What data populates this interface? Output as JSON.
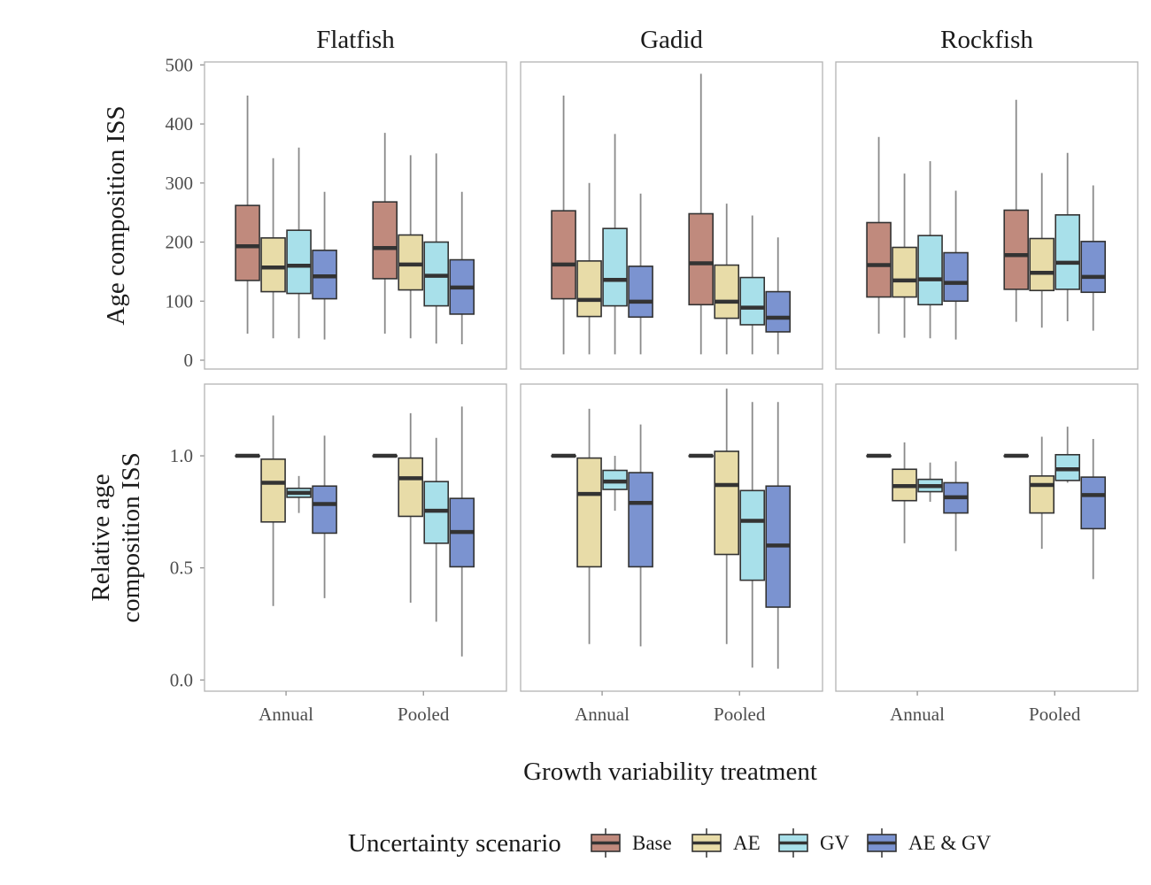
{
  "chart_data": {
    "type": "boxplot",
    "facets": [
      "Flatfish",
      "Gadid",
      "Rockfish"
    ],
    "categories": [
      "Annual",
      "Pooled"
    ],
    "xlabel": "Growth variability treatment",
    "legend": {
      "title": "Uncertainty scenario",
      "placement": "bottom",
      "series": [
        {
          "name": "Base",
          "color": "#c08a7d"
        },
        {
          "name": "AE",
          "color": "#e8dca8"
        },
        {
          "name": "GV",
          "color": "#a8e0ea"
        },
        {
          "name": "AE & GV",
          "color": "#7b93d0"
        }
      ]
    },
    "rows": [
      {
        "ylabel": [
          "Age composition ISS"
        ],
        "ylim": [
          -15,
          505
        ],
        "yticks": [
          0,
          100,
          200,
          300,
          400,
          500
        ],
        "ytick_labels": [
          "0",
          "100",
          "200",
          "300",
          "400",
          "500"
        ],
        "panels": {
          "Flatfish": {
            "Annual": [
              {
                "min": 45,
                "q1": 135,
                "median": 193,
                "q3": 262,
                "max": 448
              },
              {
                "min": 37,
                "q1": 116,
                "median": 157,
                "q3": 207,
                "max": 342
              },
              {
                "min": 37,
                "q1": 113,
                "median": 160,
                "q3": 220,
                "max": 360
              },
              {
                "min": 35,
                "q1": 104,
                "median": 142,
                "q3": 186,
                "max": 285
              }
            ],
            "Pooled": [
              {
                "min": 45,
                "q1": 138,
                "median": 190,
                "q3": 268,
                "max": 385
              },
              {
                "min": 37,
                "q1": 119,
                "median": 162,
                "q3": 212,
                "max": 347
              },
              {
                "min": 28,
                "q1": 92,
                "median": 143,
                "q3": 200,
                "max": 350
              },
              {
                "min": 27,
                "q1": 78,
                "median": 123,
                "q3": 170,
                "max": 285
              }
            ]
          },
          "Gadid": {
            "Annual": [
              {
                "min": 10,
                "q1": 104,
                "median": 162,
                "q3": 253,
                "max": 448
              },
              {
                "min": 10,
                "q1": 74,
                "median": 102,
                "q3": 168,
                "max": 300
              },
              {
                "min": 10,
                "q1": 92,
                "median": 136,
                "q3": 223,
                "max": 383
              },
              {
                "min": 10,
                "q1": 73,
                "median": 99,
                "q3": 159,
                "max": 282
              }
            ],
            "Pooled": [
              {
                "min": 10,
                "q1": 94,
                "median": 164,
                "q3": 248,
                "max": 485
              },
              {
                "min": 10,
                "q1": 71,
                "median": 99,
                "q3": 161,
                "max": 265
              },
              {
                "min": 10,
                "q1": 60,
                "median": 89,
                "q3": 140,
                "max": 245
              },
              {
                "min": 10,
                "q1": 48,
                "median": 72,
                "q3": 116,
                "max": 208
              }
            ]
          },
          "Rockfish": {
            "Annual": [
              {
                "min": 45,
                "q1": 107,
                "median": 161,
                "q3": 233,
                "max": 378
              },
              {
                "min": 38,
                "q1": 107,
                "median": 135,
                "q3": 191,
                "max": 316
              },
              {
                "min": 37,
                "q1": 94,
                "median": 137,
                "q3": 211,
                "max": 337
              },
              {
                "min": 35,
                "q1": 100,
                "median": 131,
                "q3": 182,
                "max": 287
              }
            ],
            "Pooled": [
              {
                "min": 65,
                "q1": 120,
                "median": 178,
                "q3": 254,
                "max": 441
              },
              {
                "min": 55,
                "q1": 118,
                "median": 148,
                "q3": 206,
                "max": 317
              },
              {
                "min": 66,
                "q1": 120,
                "median": 165,
                "q3": 246,
                "max": 351
              },
              {
                "min": 50,
                "q1": 115,
                "median": 141,
                "q3": 201,
                "max": 296
              }
            ]
          }
        }
      },
      {
        "ylabel": [
          "Relative age",
          "composition ISS"
        ],
        "ylim": [
          -0.05,
          1.32
        ],
        "yticks": [
          0,
          0.5,
          1
        ],
        "ytick_labels": [
          "0.0",
          "0.5",
          "1.0"
        ],
        "panels": {
          "Flatfish": {
            "Annual": [
              {
                "min": 1.0,
                "q1": 1.0,
                "median": 1.0,
                "q3": 1.0,
                "max": 1.0
              },
              {
                "min": 0.33,
                "q1": 0.705,
                "median": 0.88,
                "q3": 0.985,
                "max": 1.18
              },
              {
                "min": 0.745,
                "q1": 0.815,
                "median": 0.835,
                "q3": 0.855,
                "max": 0.91
              },
              {
                "min": 0.365,
                "q1": 0.655,
                "median": 0.785,
                "q3": 0.865,
                "max": 1.09
              }
            ],
            "Pooled": [
              {
                "min": 1.0,
                "q1": 1.0,
                "median": 1.0,
                "q3": 1.0,
                "max": 1.0
              },
              {
                "min": 0.345,
                "q1": 0.73,
                "median": 0.9,
                "q3": 0.99,
                "max": 1.19
              },
              {
                "min": 0.26,
                "q1": 0.61,
                "median": 0.755,
                "q3": 0.885,
                "max": 1.08
              },
              {
                "min": 0.105,
                "q1": 0.505,
                "median": 0.66,
                "q3": 0.81,
                "max": 1.22
              }
            ]
          },
          "Gadid": {
            "Annual": [
              {
                "min": 1.0,
                "q1": 1.0,
                "median": 1.0,
                "q3": 1.0,
                "max": 1.0
              },
              {
                "min": 0.16,
                "q1": 0.505,
                "median": 0.83,
                "q3": 0.99,
                "max": 1.21
              },
              {
                "min": 0.755,
                "q1": 0.85,
                "median": 0.885,
                "q3": 0.935,
                "max": 1.0
              },
              {
                "min": 0.15,
                "q1": 0.505,
                "median": 0.79,
                "q3": 0.925,
                "max": 1.14
              }
            ],
            "Pooled": [
              {
                "min": 1.0,
                "q1": 1.0,
                "median": 1.0,
                "q3": 1.0,
                "max": 1.0
              },
              {
                "min": 0.16,
                "q1": 0.56,
                "median": 0.87,
                "q3": 1.02,
                "max": 1.3
              },
              {
                "min": 0.055,
                "q1": 0.445,
                "median": 0.71,
                "q3": 0.845,
                "max": 1.24
              },
              {
                "min": 0.05,
                "q1": 0.325,
                "median": 0.6,
                "q3": 0.865,
                "max": 1.24
              }
            ]
          },
          "Rockfish": {
            "Annual": [
              {
                "min": 1.0,
                "q1": 1.0,
                "median": 1.0,
                "q3": 1.0,
                "max": 1.0
              },
              {
                "min": 0.61,
                "q1": 0.8,
                "median": 0.865,
                "q3": 0.94,
                "max": 1.06
              },
              {
                "min": 0.795,
                "q1": 0.84,
                "median": 0.865,
                "q3": 0.895,
                "max": 0.97
              },
              {
                "min": 0.575,
                "q1": 0.745,
                "median": 0.815,
                "q3": 0.88,
                "max": 0.975
              }
            ],
            "Pooled": [
              {
                "min": 1.0,
                "q1": 1.0,
                "median": 1.0,
                "q3": 1.0,
                "max": 1.0
              },
              {
                "min": 0.585,
                "q1": 0.745,
                "median": 0.87,
                "q3": 0.91,
                "max": 1.085
              },
              {
                "min": 0.88,
                "q1": 0.89,
                "median": 0.94,
                "q3": 1.005,
                "max": 1.13
              },
              {
                "min": 0.45,
                "q1": 0.675,
                "median": 0.825,
                "q3": 0.905,
                "max": 1.075
              }
            ]
          }
        }
      }
    ]
  }
}
